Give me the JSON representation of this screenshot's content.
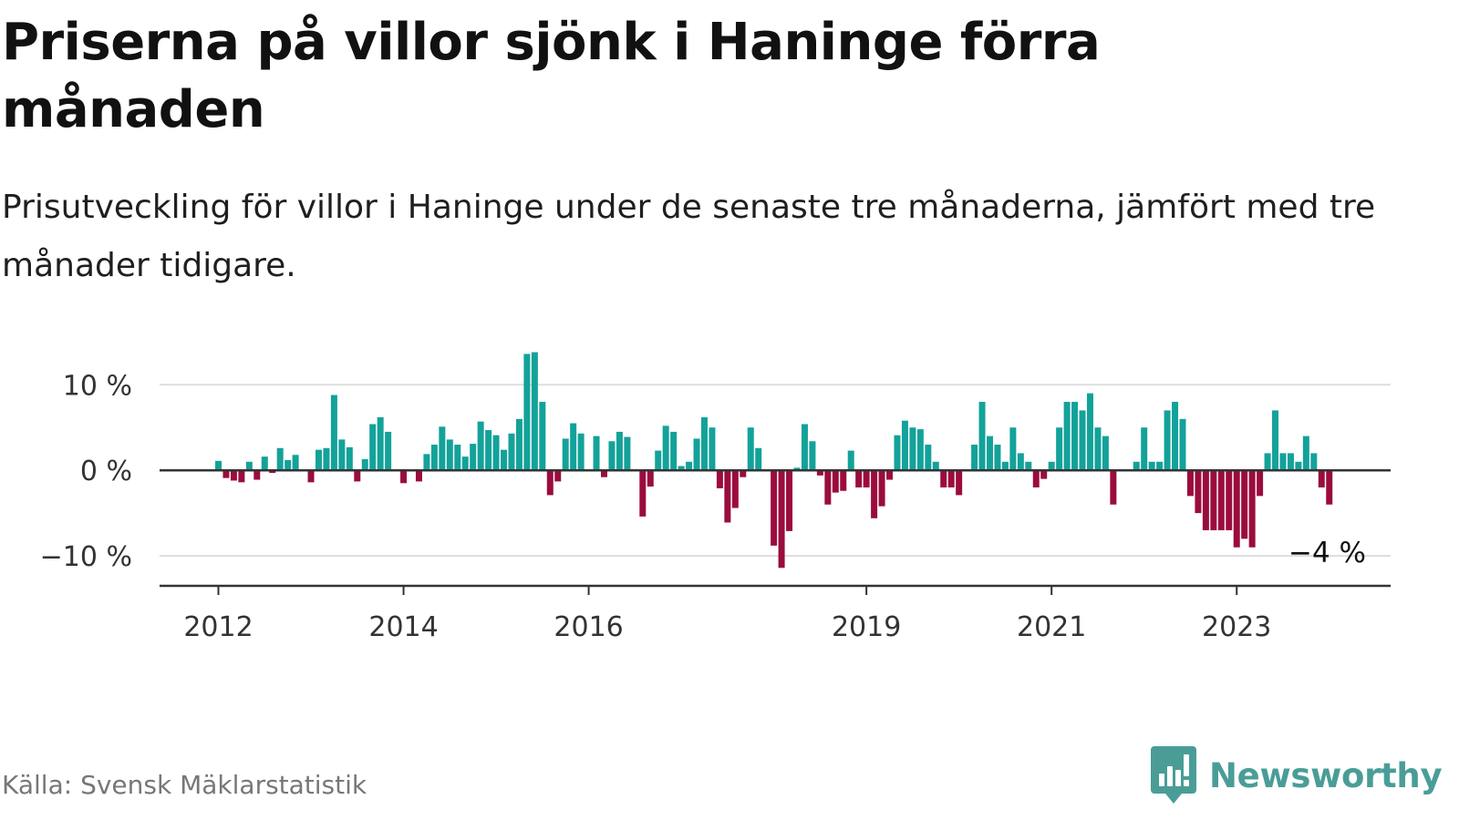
{
  "title": "Priserna på villor sjönk i Haninge förra månaden",
  "subtitle": "Prisutveckling för villor i Haninge under de senaste tre månaderna, jämfört med tre månader tidigare.",
  "source": "Källa: Svensk Mäklarstatistik",
  "brand": {
    "name": "Newsworthy"
  },
  "colors": {
    "positive": "#13a29a",
    "negative": "#9b0c3e",
    "grid": "#dddddd",
    "axis": "#333333",
    "brand": "#4a9d97"
  },
  "chart_data": {
    "type": "bar",
    "title": "Priserna på villor sjönk i Haninge förra månaden",
    "xlabel": "",
    "ylabel": "",
    "ylim": [
      -13.5,
      14.5
    ],
    "y_ticks": [
      {
        "value": 10,
        "label": "10 %"
      },
      {
        "value": 0,
        "label": "0 %"
      },
      {
        "value": -10,
        "label": "−10 %"
      }
    ],
    "x_ticks": [
      {
        "label": "2012",
        "index": 0
      },
      {
        "label": "2014",
        "index": 24
      },
      {
        "label": "2016",
        "index": 48
      },
      {
        "label": "2019",
        "index": 84
      },
      {
        "label": "2021",
        "index": 108
      },
      {
        "label": "2023",
        "index": 132
      }
    ],
    "first_month": "2011-12",
    "values": [
      1.1,
      -0.9,
      -1.2,
      -1.4,
      1.0,
      -1.1,
      1.6,
      -0.3,
      2.6,
      1.2,
      1.8,
      0.0,
      -1.4,
      2.4,
      2.6,
      8.8,
      3.6,
      2.7,
      -1.3,
      1.3,
      5.4,
      6.2,
      4.5,
      0.0,
      -1.5,
      0.0,
      -1.3,
      1.9,
      3.0,
      5.1,
      3.6,
      3.0,
      1.6,
      3.1,
      5.7,
      4.7,
      4.1,
      2.4,
      4.3,
      6.0,
      13.6,
      13.8,
      8.0,
      -2.9,
      -1.3,
      3.7,
      5.5,
      4.3,
      0.0,
      4.0,
      -0.8,
      3.4,
      4.5,
      3.9,
      0.0,
      -5.4,
      -1.9,
      2.3,
      5.2,
      4.5,
      0.5,
      1.0,
      3.7,
      6.2,
      5.0,
      -2.1,
      -6.1,
      -4.4,
      -0.8,
      5.0,
      2.6,
      0.0,
      -8.8,
      -11.4,
      -7.1,
      0.3,
      5.4,
      3.4,
      -0.6,
      -4.0,
      -2.6,
      -2.4,
      2.3,
      -2.0,
      -2.0,
      -5.6,
      -4.2,
      -1.1,
      4.1,
      5.8,
      5.0,
      4.8,
      3.0,
      1.0,
      -2.0,
      -2.0,
      -2.9,
      0.0,
      3.0,
      8.0,
      4.0,
      3.0,
      1.0,
      5.0,
      2.0,
      1.0,
      -2.0,
      -1.0,
      1.0,
      5.0,
      8.0,
      8.0,
      7.0,
      9.0,
      5.0,
      4.0,
      -4.0,
      0.0,
      0.0,
      1.0,
      5.0,
      1.0,
      1.0,
      7.0,
      8.0,
      6.0,
      -3.0,
      -5.0,
      -7.0,
      -7.0,
      -7.0,
      -7.0,
      -9.0,
      -8.0,
      -9.0,
      -3.0,
      2.0,
      7.0,
      2.0,
      2.0,
      1.0,
      4.0,
      2.0,
      -2.0,
      -4.0
    ],
    "last_value_label": "−4 %"
  }
}
